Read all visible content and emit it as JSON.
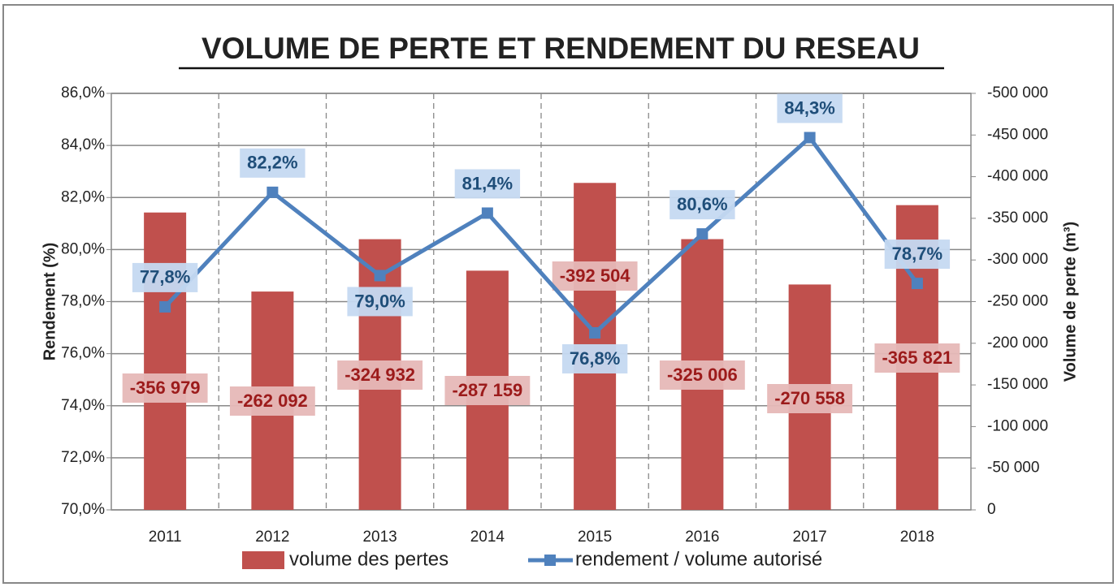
{
  "chart_data": {
    "type": "combo",
    "title": "VOLUME DE PERTE ET RENDEMENT DU RESEAU",
    "y_label": "Rendement (%)",
    "y2_label": "Volume de perte (m³)",
    "categories": [
      "2011",
      "2012",
      "2013",
      "2014",
      "2015",
      "2016",
      "2017",
      "2018"
    ],
    "series": [
      {
        "name": "volume des pertes",
        "type": "bar",
        "axis": "y2",
        "color": "#c0504d",
        "values": [
          -356979,
          -262092,
          -324932,
          -287159,
          -392504,
          -325006,
          -270558,
          -365821
        ],
        "value_labels": [
          "-356 979",
          "-262 092",
          "-324 932",
          "-287 159",
          "-392 504",
          "-325 006",
          "-270 558",
          "-365 821"
        ]
      },
      {
        "name": "rendement / volume autorisé",
        "type": "line",
        "color": "#4f81bd",
        "values": [
          77.8,
          82.2,
          79.0,
          81.4,
          76.8,
          80.6,
          84.3,
          78.7
        ],
        "value_labels": [
          "77,8%",
          "82,2%",
          "79,0%",
          "81,4%",
          "76,8%",
          "80,6%",
          "84,3%",
          "78,7%"
        ]
      }
    ],
    "ylim": [
      70,
      86
    ],
    "yticks": [
      {
        "value": 70,
        "label": "70,0%"
      },
      {
        "value": 72,
        "label": "72,0%"
      },
      {
        "value": 74,
        "label": "74,0%"
      },
      {
        "value": 76,
        "label": "76,0%"
      },
      {
        "value": 78,
        "label": "78,0%"
      },
      {
        "value": 80,
        "label": "80,0%"
      },
      {
        "value": 82,
        "label": "82,0%"
      },
      {
        "value": 84,
        "label": "84,0%"
      },
      {
        "value": 86,
        "label": "86,0%"
      }
    ],
    "y2lim": [
      0,
      -500000
    ],
    "y2ticks": [
      0,
      {
        "value": -50000,
        "label": "-50 000"
      },
      {
        "value": -100000,
        "label": "-100 000"
      },
      {
        "value": -150000,
        "label": "-150 000"
      },
      {
        "value": -200000,
        "label": "-200 000"
      },
      {
        "value": -250000,
        "label": "-250 000"
      },
      {
        "value": -300000,
        "label": "-300 000"
      },
      {
        "value": -350000,
        "label": "-350 000"
      },
      {
        "value": -400000,
        "label": "-400 000"
      },
      {
        "value": -450000,
        "label": "-450 000"
      },
      {
        "value": -500000,
        "label": "-500 000"
      }
    ],
    "grid": true,
    "legend": "bottom"
  }
}
